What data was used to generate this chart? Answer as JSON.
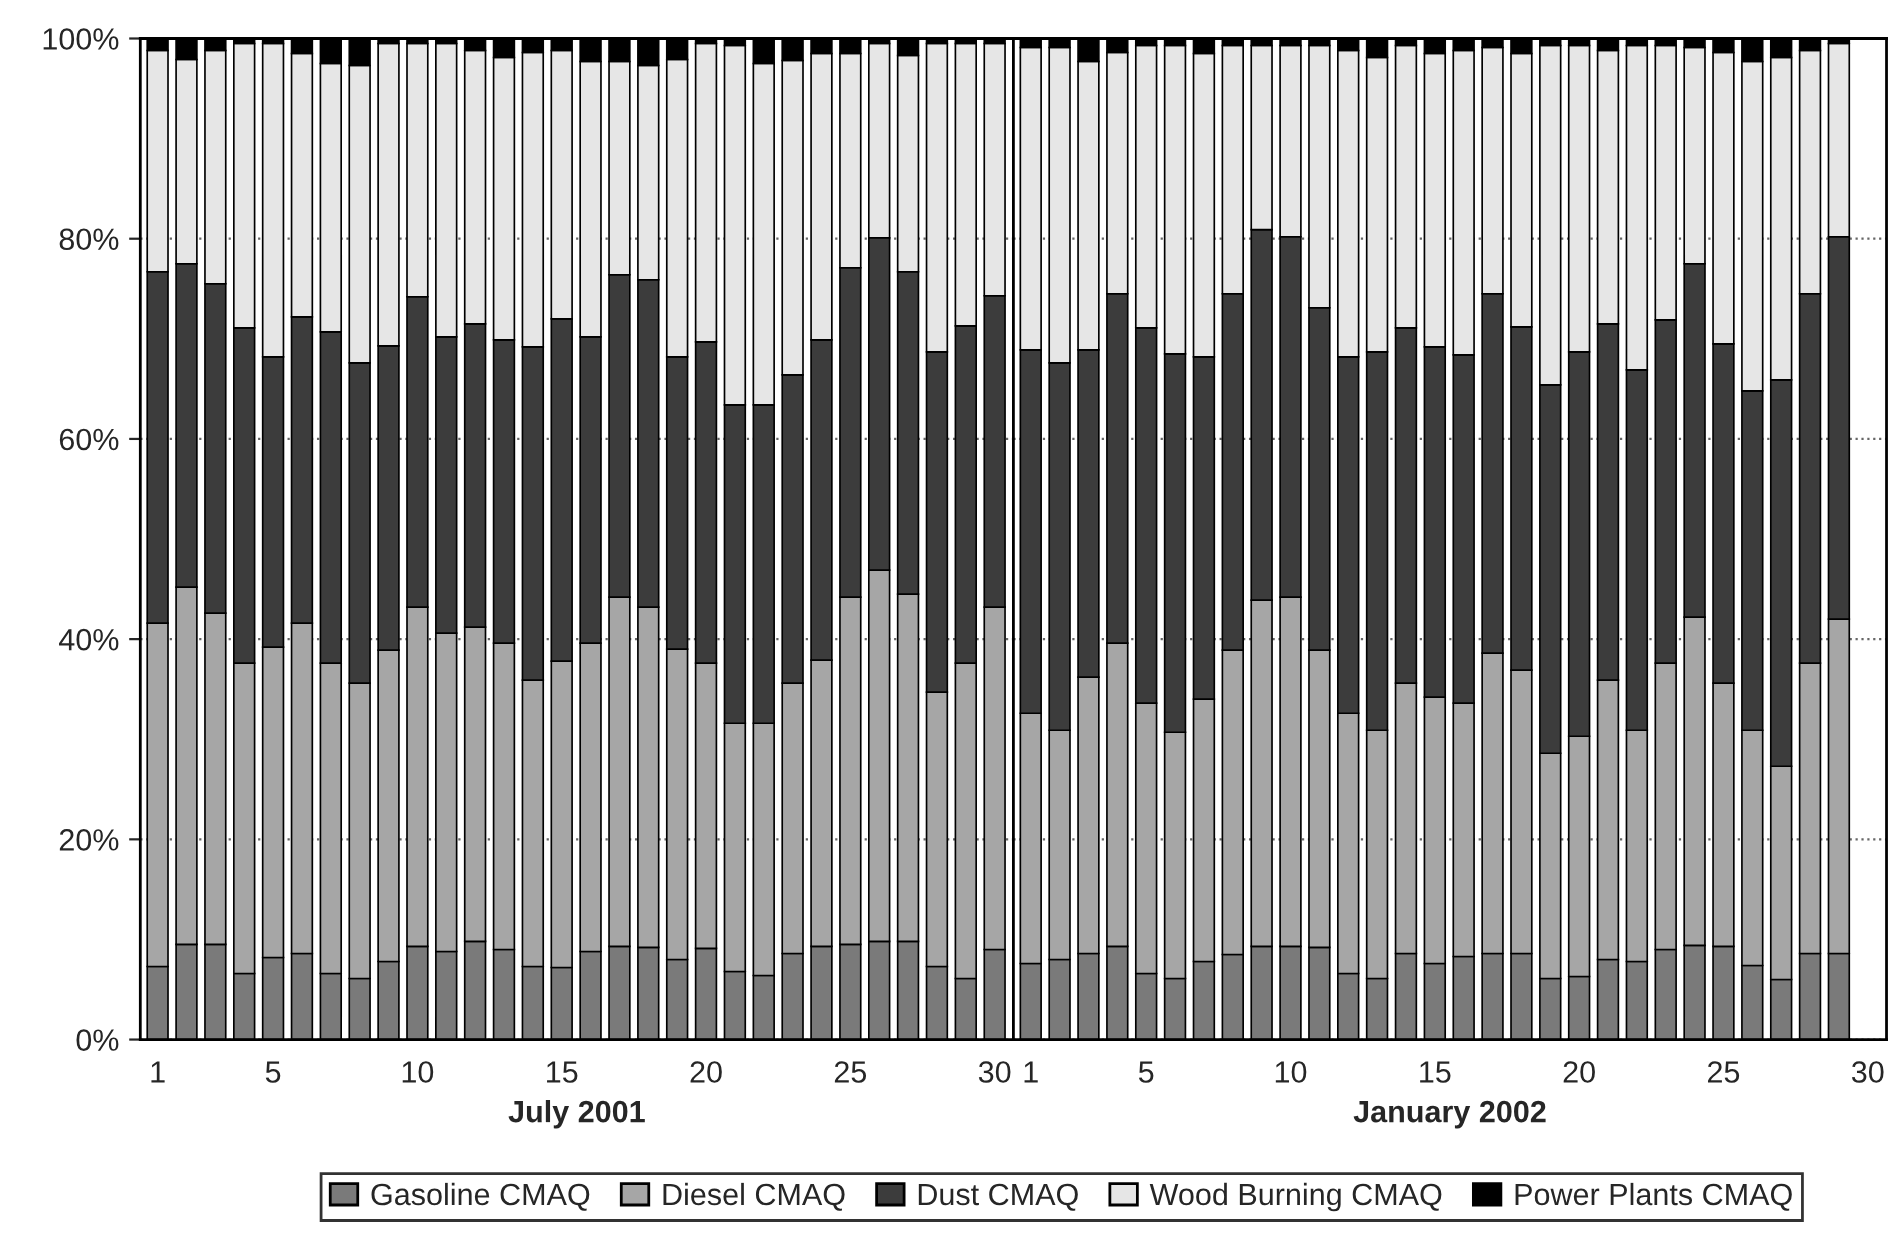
{
  "chart_data": [
    {
      "type": "bar",
      "stacked": true,
      "xlabel": "July 2001",
      "categories": [
        "1",
        null,
        null,
        null,
        "5",
        null,
        null,
        null,
        null,
        "10",
        null,
        null,
        null,
        null,
        "15",
        null,
        null,
        null,
        null,
        "20",
        null,
        null,
        null,
        null,
        "25",
        null,
        null,
        null,
        null,
        "30"
      ],
      "ylim": [
        0,
        100
      ],
      "yticks": [
        {
          "value": 0,
          "label": "0%"
        },
        {
          "value": 20,
          "label": "20%"
        },
        {
          "value": 40,
          "label": "40%"
        },
        {
          "value": 60,
          "label": "60%"
        },
        {
          "value": 80,
          "label": "80%"
        },
        {
          "value": 100,
          "label": "100%"
        }
      ],
      "grid": "y",
      "legend": "bottom",
      "series": [
        {
          "name": "Gasoline CMAQ",
          "color": "#7a7a7a",
          "values": [
            7.3,
            9.5,
            9.5,
            6.6,
            8.2,
            8.6,
            6.6,
            6.1,
            7.8,
            9.3,
            8.8,
            9.8,
            9.0,
            7.3,
            7.2,
            8.8,
            9.3,
            9.2,
            8.0,
            9.1,
            6.8,
            6.4,
            8.6,
            9.3,
            9.5,
            9.8,
            9.8,
            7.3,
            6.1,
            9.0
          ]
        },
        {
          "name": "Diesel CMAQ",
          "color": "#a6a6a6",
          "values": [
            34.3,
            35.7,
            33.1,
            31.0,
            31.0,
            33.0,
            31.0,
            29.5,
            31.1,
            33.9,
            31.8,
            31.4,
            30.6,
            28.6,
            30.6,
            30.8,
            34.9,
            34.0,
            31.0,
            28.5,
            24.8,
            25.2,
            27.0,
            28.6,
            34.7,
            37.1,
            34.7,
            27.4,
            31.5,
            34.2
          ]
        },
        {
          "name": "Dust CMAQ",
          "color": "#3c3c3c",
          "values": [
            35.1,
            32.3,
            32.9,
            33.5,
            29.0,
            30.6,
            33.1,
            32.0,
            30.4,
            31.0,
            29.6,
            30.3,
            30.3,
            33.3,
            34.2,
            30.6,
            32.2,
            32.7,
            29.2,
            32.1,
            31.8,
            31.8,
            30.8,
            32.0,
            32.9,
            33.2,
            32.2,
            34.0,
            33.7,
            31.1
          ]
        },
        {
          "name": "Wood Burning CMAQ",
          "color": "#e6e6e6",
          "values": [
            22.1,
            20.4,
            23.3,
            28.4,
            31.3,
            26.3,
            26.8,
            29.7,
            30.2,
            25.3,
            29.3,
            27.3,
            28.2,
            29.4,
            26.8,
            27.5,
            21.3,
            21.4,
            29.7,
            29.8,
            35.9,
            34.1,
            31.4,
            28.6,
            21.4,
            19.4,
            21.6,
            30.8,
            28.2,
            25.2
          ]
        },
        {
          "name": "Power Plants CMAQ",
          "color": "#000000",
          "values": [
            1.2,
            2.1,
            1.2,
            0.5,
            0.5,
            1.5,
            2.5,
            2.7,
            0.5,
            0.5,
            0.5,
            1.2,
            1.9,
            1.4,
            1.2,
            2.3,
            2.3,
            2.7,
            2.1,
            0.5,
            0.7,
            2.5,
            2.2,
            1.5,
            1.5,
            0.5,
            1.7,
            0.5,
            0.5,
            0.5
          ]
        }
      ]
    },
    {
      "type": "bar",
      "stacked": true,
      "xlabel": "January 2002",
      "categories": [
        "1",
        null,
        null,
        null,
        "5",
        null,
        null,
        null,
        null,
        "10",
        null,
        null,
        null,
        null,
        "15",
        null,
        null,
        null,
        null,
        "20",
        null,
        null,
        null,
        null,
        "25",
        null,
        null,
        null,
        null,
        "30"
      ],
      "ylim": [
        0,
        100
      ],
      "yticks": [
        {
          "value": 0,
          "label": null
        },
        {
          "value": 20,
          "label": null
        },
        {
          "value": 40,
          "label": null
        },
        {
          "value": 60,
          "label": null
        },
        {
          "value": 80,
          "label": null
        },
        {
          "value": 100,
          "label": null
        }
      ],
      "grid": "y",
      "tick_labels": "x",
      "series": [
        {
          "color": "#7a7a7a",
          "values": [
            7.6,
            8.0,
            8.6,
            9.3,
            6.6,
            6.1,
            7.8,
            8.5,
            9.3,
            9.3,
            9.2,
            6.6,
            6.1,
            8.6,
            7.6,
            8.3,
            8.6,
            8.6,
            6.1,
            6.3,
            8.0,
            7.8,
            9.0,
            9.4,
            9.3,
            7.4,
            6.0,
            8.6,
            8.6,
            null
          ]
        },
        {
          "color": "#a6a6a6",
          "values": [
            25.0,
            22.9,
            27.6,
            30.3,
            27.0,
            24.6,
            26.2,
            30.4,
            34.6,
            34.9,
            29.7,
            26.0,
            24.8,
            27.0,
            26.6,
            25.3,
            30.0,
            28.3,
            22.5,
            24.0,
            27.9,
            23.1,
            28.6,
            32.8,
            26.3,
            23.5,
            21.3,
            29.0,
            33.4,
            null
          ]
        },
        {
          "color": "#3c3c3c",
          "values": [
            36.3,
            36.7,
            32.7,
            34.9,
            37.5,
            37.8,
            34.2,
            35.6,
            37.0,
            36.0,
            34.2,
            35.6,
            37.8,
            35.5,
            35.0,
            34.8,
            35.9,
            34.3,
            36.8,
            38.4,
            35.6,
            36.0,
            34.3,
            35.3,
            33.9,
            33.9,
            38.6,
            36.9,
            38.2,
            null
          ]
        },
        {
          "color": "#e6e6e6",
          "values": [
            30.2,
            31.5,
            28.8,
            24.1,
            28.2,
            30.8,
            30.3,
            24.8,
            18.4,
            19.1,
            26.2,
            30.6,
            29.4,
            28.2,
            29.3,
            30.4,
            24.6,
            27.3,
            33.9,
            30.6,
            27.3,
            32.4,
            27.4,
            21.6,
            29.1,
            32.9,
            32.2,
            24.3,
            19.3,
            null
          ]
        },
        {
          "color": "#000000",
          "values": [
            0.9,
            0.9,
            2.3,
            1.4,
            0.7,
            0.7,
            1.5,
            0.7,
            0.7,
            0.7,
            0.7,
            1.2,
            1.9,
            0.7,
            1.5,
            1.2,
            0.9,
            1.5,
            0.7,
            0.7,
            1.2,
            0.7,
            0.7,
            0.9,
            1.4,
            2.3,
            1.9,
            1.2,
            0.5,
            null
          ]
        }
      ]
    }
  ]
}
